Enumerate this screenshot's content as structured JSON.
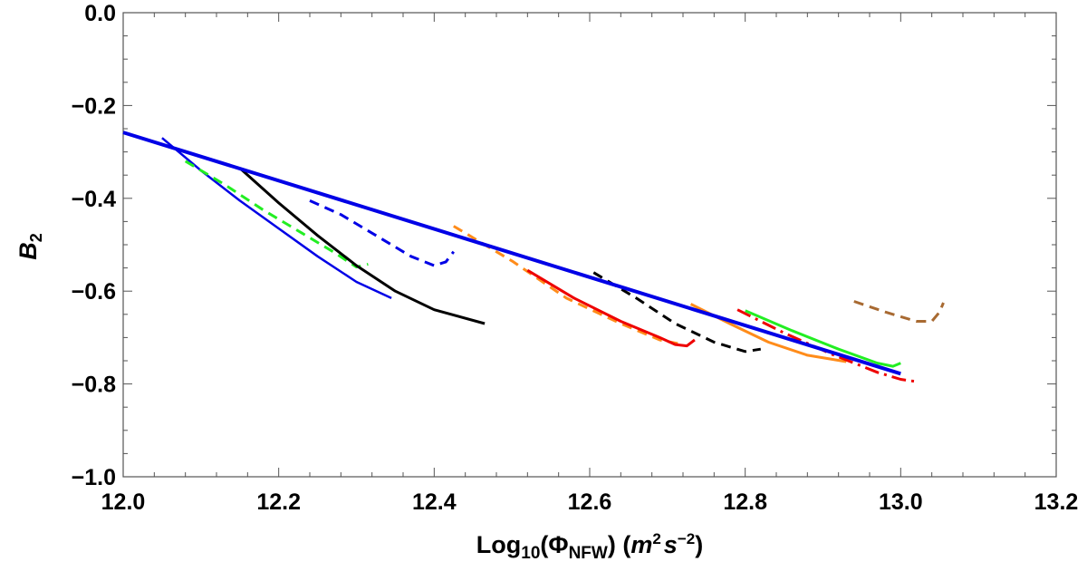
{
  "chart_data": {
    "type": "line",
    "title": "",
    "xlabel": {
      "pre": "Log",
      "sub1": "10",
      "mid": "(Φ",
      "sub2": "NFW",
      "post": ") (",
      "m": "m",
      "sup1": "2",
      "s": "s",
      "sup2": "−2",
      "close": ")"
    },
    "ylabel": {
      "main": "B",
      "sub": "2"
    },
    "xlim": [
      12.0,
      13.2
    ],
    "ylim": [
      -1.0,
      0.0
    ],
    "xticks": [
      "12.0",
      "12.2",
      "12.4",
      "12.6",
      "12.8",
      "13.0",
      "13.2"
    ],
    "yticks": [
      "0.0",
      "−0.2",
      "−0.4",
      "−0.6",
      "−0.8",
      "−1.0"
    ],
    "grid": false,
    "series": [
      {
        "color": "#0000e6",
        "dash": "solid",
        "width": 2.5,
        "points": [
          [
            12.05,
            -0.27
          ],
          [
            12.1,
            -0.34
          ],
          [
            12.15,
            -0.405
          ],
          [
            12.2,
            -0.465
          ],
          [
            12.25,
            -0.525
          ],
          [
            12.3,
            -0.58
          ],
          [
            12.345,
            -0.615
          ]
        ]
      },
      {
        "color": "#22ee22",
        "dash": "dash",
        "width": 3,
        "points": [
          [
            12.08,
            -0.32
          ],
          [
            12.13,
            -0.37
          ],
          [
            12.18,
            -0.425
          ],
          [
            12.23,
            -0.475
          ],
          [
            12.27,
            -0.515
          ],
          [
            12.3,
            -0.548
          ],
          [
            12.315,
            -0.542
          ]
        ]
      },
      {
        "color": "#000000",
        "dash": "solid",
        "width": 3,
        "points": [
          [
            12.15,
            -0.335
          ],
          [
            12.2,
            -0.41
          ],
          [
            12.25,
            -0.48
          ],
          [
            12.3,
            -0.545
          ],
          [
            12.35,
            -0.6
          ],
          [
            12.4,
            -0.64
          ],
          [
            12.465,
            -0.67
          ]
        ]
      },
      {
        "color": "#0000e6",
        "dash": "dash",
        "width": 3,
        "points": [
          [
            12.24,
            -0.405
          ],
          [
            12.28,
            -0.435
          ],
          [
            12.33,
            -0.485
          ],
          [
            12.37,
            -0.525
          ],
          [
            12.4,
            -0.545
          ],
          [
            12.415,
            -0.537
          ],
          [
            12.425,
            -0.515
          ]
        ]
      },
      {
        "color": "#ff8c1a",
        "dash": "dash",
        "width": 3,
        "points": [
          [
            12.425,
            -0.46
          ],
          [
            12.5,
            -0.535
          ],
          [
            12.57,
            -0.615
          ],
          [
            12.64,
            -0.67
          ],
          [
            12.69,
            -0.705
          ],
          [
            12.72,
            -0.715
          ]
        ]
      },
      {
        "color": "#ee0000",
        "dash": "solid",
        "width": 3,
        "points": [
          [
            12.52,
            -0.555
          ],
          [
            12.58,
            -0.615
          ],
          [
            12.64,
            -0.665
          ],
          [
            12.69,
            -0.7
          ],
          [
            12.71,
            -0.715
          ],
          [
            12.725,
            -0.718
          ],
          [
            12.735,
            -0.705
          ]
        ]
      },
      {
        "color": "#000000",
        "dash": "dash",
        "width": 3,
        "points": [
          [
            12.605,
            -0.56
          ],
          [
            12.66,
            -0.615
          ],
          [
            12.71,
            -0.67
          ],
          [
            12.76,
            -0.71
          ],
          [
            12.8,
            -0.73
          ],
          [
            12.82,
            -0.725
          ]
        ]
      },
      {
        "color": "#ff8c1a",
        "dash": "solid",
        "width": 3,
        "points": [
          [
            12.73,
            -0.628
          ],
          [
            12.78,
            -0.67
          ],
          [
            12.83,
            -0.71
          ],
          [
            12.88,
            -0.738
          ],
          [
            12.93,
            -0.752
          ]
        ]
      },
      {
        "color": "#ee0000",
        "dash": "dashdot",
        "width": 3,
        "points": [
          [
            12.79,
            -0.64
          ],
          [
            12.85,
            -0.69
          ],
          [
            12.91,
            -0.735
          ],
          [
            12.97,
            -0.775
          ],
          [
            13.0,
            -0.79
          ],
          [
            13.02,
            -0.795
          ]
        ]
      },
      {
        "color": "#22ee22",
        "dash": "solid",
        "width": 3,
        "points": [
          [
            12.8,
            -0.642
          ],
          [
            12.86,
            -0.685
          ],
          [
            12.92,
            -0.725
          ],
          [
            12.97,
            -0.755
          ],
          [
            12.99,
            -0.762
          ],
          [
            13.0,
            -0.755
          ]
        ]
      },
      {
        "color": "#a86a32",
        "dash": "dash",
        "width": 3,
        "points": [
          [
            12.94,
            -0.622
          ],
          [
            12.98,
            -0.645
          ],
          [
            13.02,
            -0.665
          ],
          [
            13.04,
            -0.665
          ],
          [
            13.05,
            -0.645
          ],
          [
            13.055,
            -0.625
          ]
        ]
      },
      {
        "color": "#0000e6",
        "dash": "solid",
        "width": 4,
        "points": [
          [
            12.0,
            -0.258
          ],
          [
            13.0,
            -0.778
          ]
        ]
      }
    ]
  }
}
